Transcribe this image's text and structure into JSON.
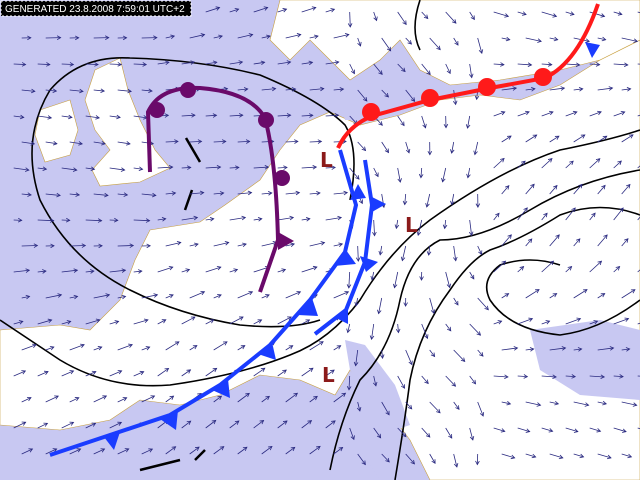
{
  "header": {
    "generated": "GENERATED 23.8.2008 7:59:01 UTC+2"
  },
  "pressure_labels": [
    "L",
    "L",
    "L"
  ]
}
